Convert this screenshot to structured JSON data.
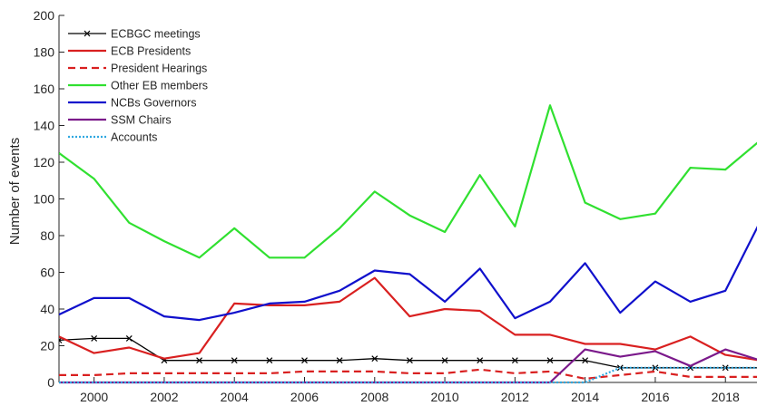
{
  "chart_data": {
    "type": "line",
    "title": "",
    "xlabel": "",
    "ylabel": "Number of events",
    "xlim": [
      1999,
      2018.9
    ],
    "ylim": [
      0,
      200
    ],
    "xticks": [
      2000,
      2002,
      2004,
      2006,
      2008,
      2010,
      2012,
      2014,
      2016,
      2018
    ],
    "yticks": [
      0,
      20,
      40,
      60,
      80,
      100,
      120,
      140,
      160,
      180,
      200
    ],
    "grid": false,
    "legend_position": "top-left",
    "x": [
      1999,
      2000,
      2001,
      2002,
      2003,
      2004,
      2005,
      2006,
      2007,
      2008,
      2009,
      2010,
      2011,
      2012,
      2013,
      2014,
      2015,
      2016,
      2017,
      2018,
      2019
    ],
    "series": [
      {
        "name": "ECBGC meetings",
        "color": "#000000",
        "style": "solid-x-marker",
        "values": [
          23,
          24,
          24,
          12,
          12,
          12,
          12,
          12,
          12,
          13,
          12,
          12,
          12,
          12,
          12,
          12,
          8,
          8,
          8,
          8,
          8
        ]
      },
      {
        "name": "ECB Presidents",
        "color": "#d92020",
        "style": "solid",
        "values": [
          25,
          16,
          19,
          13,
          16,
          43,
          42,
          42,
          44,
          57,
          36,
          40,
          39,
          26,
          26,
          21,
          21,
          18,
          25,
          15,
          12
        ]
      },
      {
        "name": "President Hearings",
        "color": "#d92020",
        "style": "dashed",
        "values": [
          4,
          4,
          5,
          5,
          5,
          5,
          5,
          6,
          6,
          6,
          5,
          5,
          7,
          5,
          6,
          2,
          4,
          6,
          3,
          3,
          3
        ]
      },
      {
        "name": "Other EB members",
        "color": "#30e030",
        "style": "solid",
        "values": [
          125,
          111,
          87,
          77,
          68,
          84,
          68,
          68,
          84,
          104,
          91,
          82,
          113,
          85,
          151,
          98,
          89,
          92,
          117,
          116,
          132
        ]
      },
      {
        "name": "NCBs Governors",
        "color": "#1010cc",
        "style": "solid",
        "values": [
          37,
          46,
          46,
          36,
          34,
          38,
          43,
          44,
          50,
          61,
          59,
          44,
          62,
          35,
          44,
          65,
          38,
          55,
          44,
          50,
          88
        ]
      },
      {
        "name": "SSM Chairs",
        "color": "#7b1a8b",
        "style": "solid",
        "values": [
          0,
          0,
          0,
          0,
          0,
          0,
          0,
          0,
          0,
          0,
          0,
          0,
          0,
          0,
          0,
          18,
          14,
          17,
          9,
          18,
          12
        ]
      },
      {
        "name": "Accounts",
        "color": "#30a8e0",
        "style": "dotted",
        "values": [
          0,
          0,
          0,
          0,
          0,
          0,
          0,
          0,
          0,
          0,
          0,
          0,
          0,
          0,
          0,
          0,
          8,
          8,
          8,
          8,
          8
        ]
      }
    ]
  }
}
